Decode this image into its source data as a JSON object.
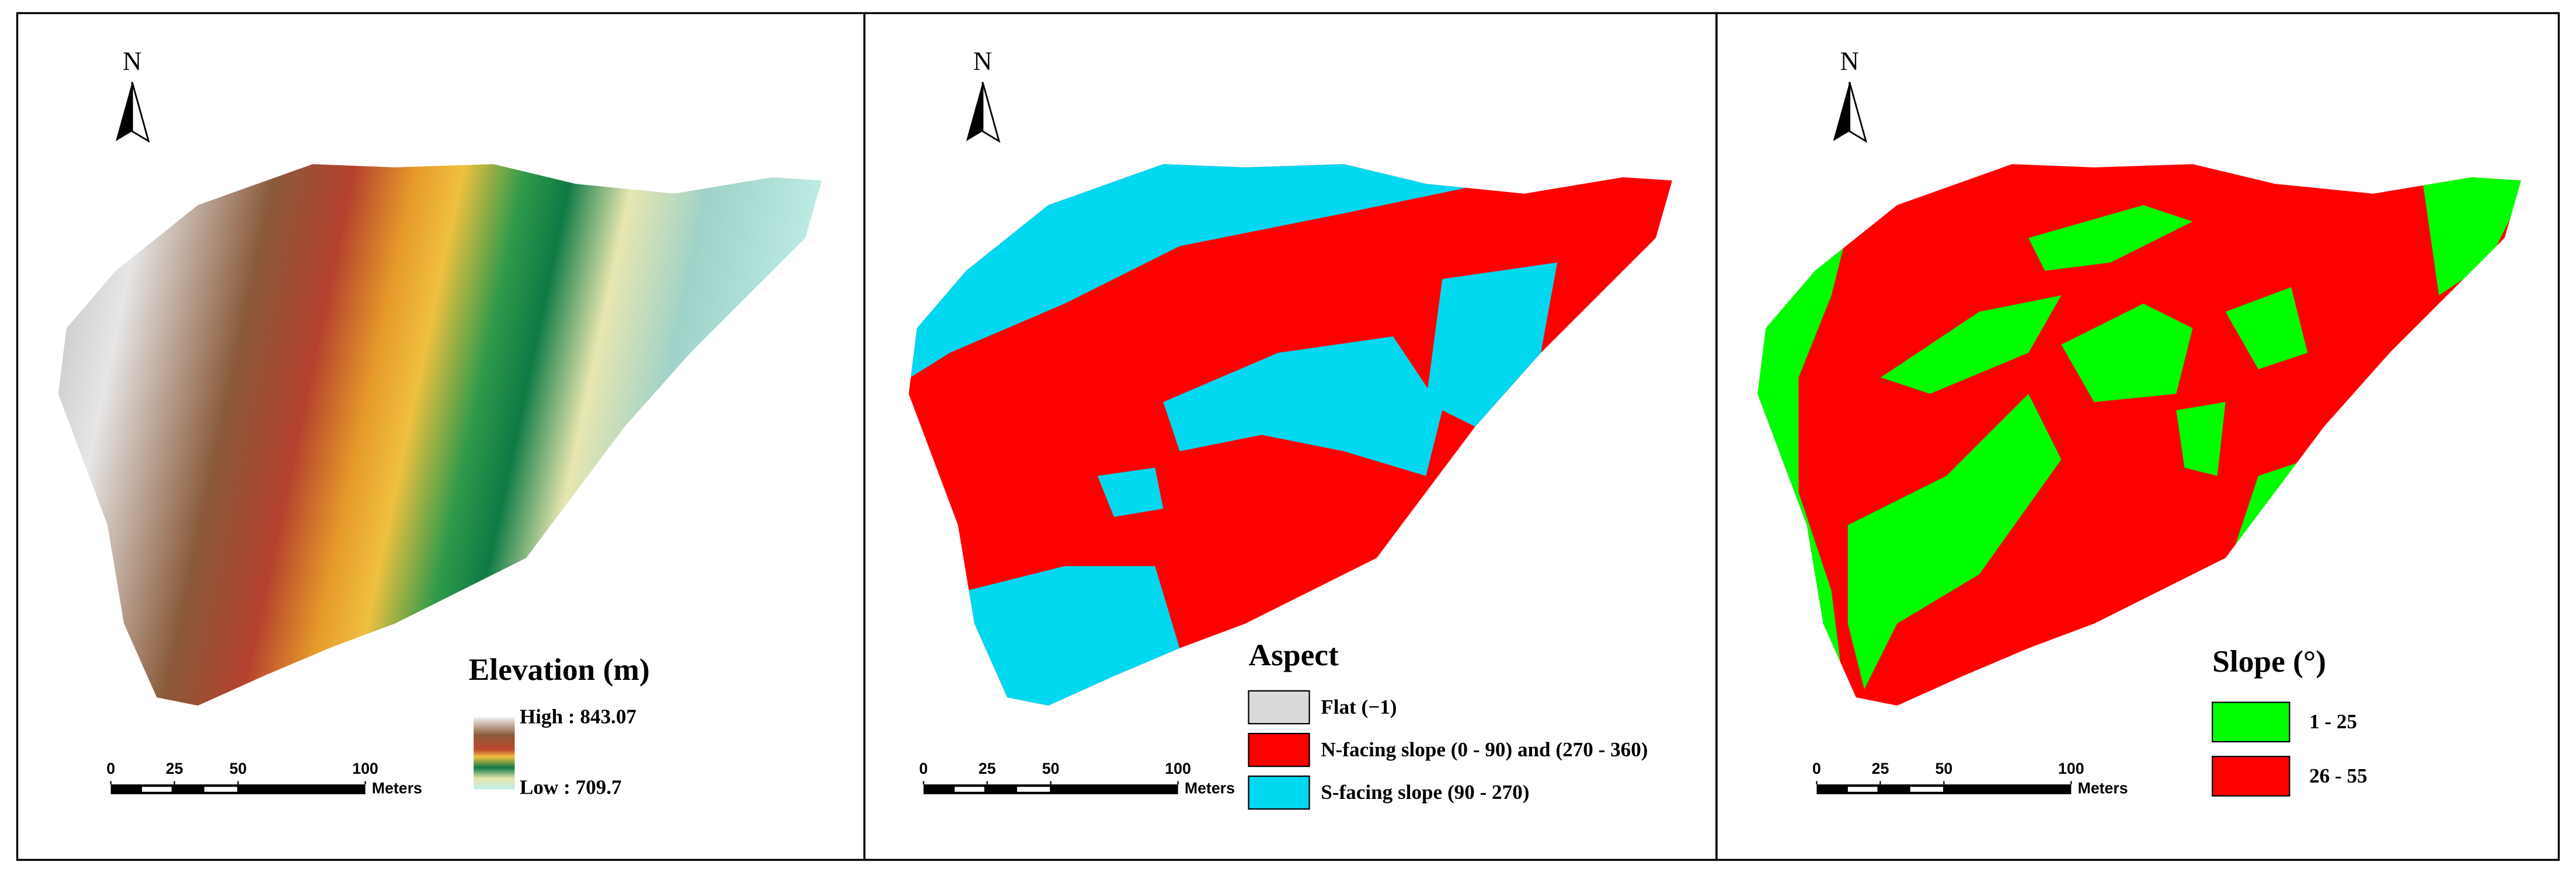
{
  "panels": [
    {
      "north": "N",
      "legend": {
        "title": "Elevation (m)",
        "high": "High : 843.07",
        "low": "Low : 709.7"
      },
      "scale_bar": {
        "ticks": [
          0,
          25,
          50,
          100
        ],
        "unit": "Meters"
      }
    },
    {
      "north": "N",
      "legend": {
        "title": "Aspect",
        "items": [
          "Flat (−1)",
          "N-facing slope (0 - 90) and (270 - 360)",
          "S-facing slope (90 - 270)"
        ]
      },
      "scale_bar": {
        "ticks": [
          0,
          25,
          50,
          100
        ],
        "unit": "Meters"
      }
    },
    {
      "north": "N",
      "legend": {
        "title": "Slope (°)",
        "items": [
          "1 - 25",
          "26 - 55"
        ]
      },
      "scale_bar": {
        "ticks": [
          0,
          25,
          50,
          100
        ],
        "unit": "Meters"
      }
    }
  ]
}
